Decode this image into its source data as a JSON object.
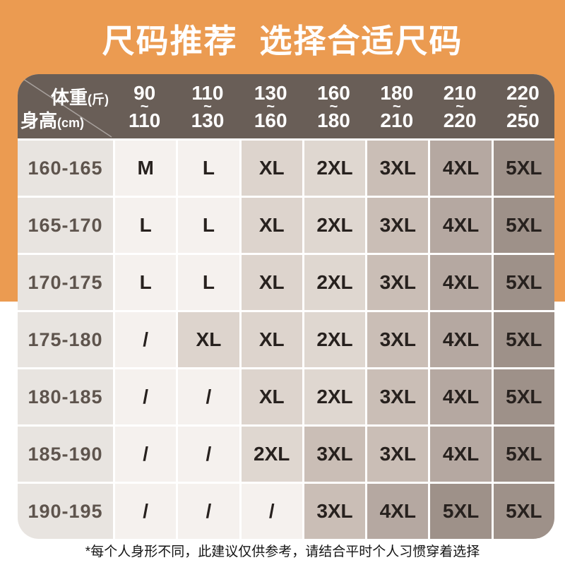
{
  "title": "尺码推荐 选择合适尺码",
  "table": {
    "corner": {
      "weight_label": "体重",
      "weight_unit": "(斤)",
      "height_label": "身高",
      "height_unit": "(cm)"
    },
    "range_separator": "~",
    "weight_columns": [
      {
        "from": "90",
        "to": "110"
      },
      {
        "from": "110",
        "to": "130"
      },
      {
        "from": "130",
        "to": "160"
      },
      {
        "from": "160",
        "to": "180"
      },
      {
        "from": "180",
        "to": "210"
      },
      {
        "from": "210",
        "to": "220"
      },
      {
        "from": "220",
        "to": "250"
      }
    ],
    "rows": [
      {
        "height": "160-165",
        "sizes": [
          "M",
          "L",
          "XL",
          "2XL",
          "3XL",
          "4XL",
          "5XL"
        ]
      },
      {
        "height": "165-170",
        "sizes": [
          "L",
          "L",
          "XL",
          "2XL",
          "3XL",
          "4XL",
          "5XL"
        ]
      },
      {
        "height": "170-175",
        "sizes": [
          "L",
          "L",
          "XL",
          "2XL",
          "3XL",
          "4XL",
          "5XL"
        ]
      },
      {
        "height": "175-180",
        "sizes": [
          "/",
          "XL",
          "XL",
          "2XL",
          "3XL",
          "4XL",
          "5XL"
        ]
      },
      {
        "height": "180-185",
        "sizes": [
          "/",
          "/",
          "XL",
          "2XL",
          "3XL",
          "4XL",
          "5XL"
        ]
      },
      {
        "height": "185-190",
        "sizes": [
          "/",
          "/",
          "2XL",
          "3XL",
          "3XL",
          "4XL",
          "5XL"
        ]
      },
      {
        "height": "190-195",
        "sizes": [
          "/",
          "/",
          "/",
          "3XL",
          "4XL",
          "5XL",
          "5XL"
        ]
      }
    ]
  },
  "footnote": "*每个人身形不同，此建议仅供参考，请结合平时个人习惯穿着选择",
  "colors": {
    "background_orange": "#EB9B51",
    "header_brown": "#695E57",
    "label_column_bg": "#E8E4E0",
    "row_label_text": "#5E544D",
    "cell_text": "#27211E",
    "size_cell_colors": {
      "/": "#F5F1EE",
      "M": "#F5F1EE",
      "L": "#F5F1EE",
      "XL": "#DDD4CD",
      "2XL": "#DFD7D0",
      "3XL": "#CABEB6",
      "4XL": "#B5A8A1",
      "5XL": "#9E9189"
    }
  },
  "chart_data": {
    "type": "table",
    "title": "尺码推荐 选择合适尺码",
    "col_header_label": "体重(斤)",
    "row_header_label": "身高(cm)",
    "columns": [
      "90~110",
      "110~130",
      "130~160",
      "160~180",
      "180~210",
      "210~220",
      "220~250"
    ],
    "rows": [
      "160-165",
      "165-170",
      "170-175",
      "175-180",
      "180-185",
      "185-190",
      "190-195"
    ],
    "values": [
      [
        "M",
        "L",
        "XL",
        "2XL",
        "3XL",
        "4XL",
        "5XL"
      ],
      [
        "L",
        "L",
        "XL",
        "2XL",
        "3XL",
        "4XL",
        "5XL"
      ],
      [
        "L",
        "L",
        "XL",
        "2XL",
        "3XL",
        "4XL",
        "5XL"
      ],
      [
        "/",
        "XL",
        "XL",
        "2XL",
        "3XL",
        "4XL",
        "5XL"
      ],
      [
        "/",
        "/",
        "XL",
        "2XL",
        "3XL",
        "4XL",
        "5XL"
      ],
      [
        "/",
        "/",
        "2XL",
        "3XL",
        "3XL",
        "4XL",
        "5XL"
      ],
      [
        "/",
        "/",
        "/",
        "3XL",
        "4XL",
        "5XL",
        "5XL"
      ]
    ]
  }
}
